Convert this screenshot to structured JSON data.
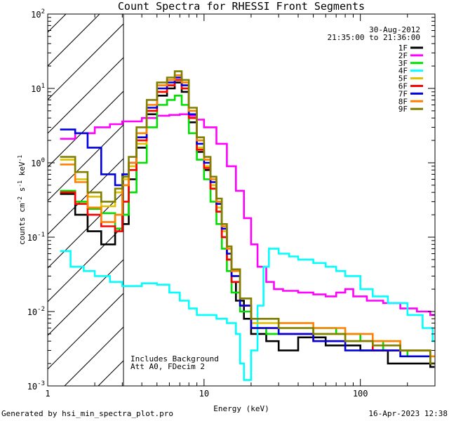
{
  "chart_data": {
    "type": "line",
    "title": "Count Spectra for RHESSI Front Segments",
    "xlabel": "Energy (keV)",
    "ylabel": "counts cm-2 s-1 keV-1",
    "xscale": "log",
    "yscale": "log",
    "xlim": [
      1,
      300
    ],
    "ylim": [
      0.001,
      100
    ],
    "x_tick_labels": [
      "1",
      "10",
      "100"
    ],
    "y_tick_labels": [
      "10-3",
      "10-2",
      "10-1",
      "100",
      "101",
      "102"
    ],
    "date": "30-Aug-2012",
    "time_range": "21:35:00 to 21:36:00",
    "notes": [
      "Includes Background",
      "Att A0, FDecim 2"
    ],
    "hatched_region": [
      1,
      3
    ],
    "legend_location": "top-right",
    "series": [
      {
        "name": "1F",
        "color": "#000000",
        "points": [
          [
            1.2,
            0.38
          ],
          [
            1.5,
            0.2
          ],
          [
            1.8,
            0.12
          ],
          [
            2.2,
            0.08
          ],
          [
            2.7,
            0.13
          ],
          [
            3.0,
            0.15
          ],
          [
            3.3,
            0.6
          ],
          [
            3.7,
            1.6
          ],
          [
            4.3,
            4.5
          ],
          [
            5.0,
            8
          ],
          [
            5.8,
            10
          ],
          [
            6.5,
            12
          ],
          [
            7.2,
            9
          ],
          [
            8,
            3.5
          ],
          [
            9,
            1.4
          ],
          [
            10,
            0.8
          ],
          [
            11,
            0.45
          ],
          [
            12,
            0.22
          ],
          [
            13,
            0.1
          ],
          [
            14,
            0.05
          ],
          [
            15,
            0.025
          ],
          [
            16,
            0.014
          ],
          [
            18,
            0.008
          ],
          [
            20,
            0.005
          ],
          [
            25,
            0.004
          ],
          [
            30,
            0.003
          ],
          [
            40,
            0.0045
          ],
          [
            60,
            0.0035
          ],
          [
            100,
            0.003
          ],
          [
            150,
            0.002
          ],
          [
            200,
            0.002
          ],
          [
            280,
            0.0018
          ]
        ]
      },
      {
        "name": "2F",
        "color": "#ff00ff",
        "points": [
          [
            1.2,
            2.1
          ],
          [
            1.5,
            2.5
          ],
          [
            2,
            3.0
          ],
          [
            2.5,
            3.3
          ],
          [
            3,
            3.6
          ],
          [
            4,
            4.0
          ],
          [
            5,
            4.3
          ],
          [
            6,
            4.4
          ],
          [
            7,
            4.5
          ],
          [
            8,
            4.3
          ],
          [
            9,
            3.8
          ],
          [
            10,
            3.0
          ],
          [
            12,
            1.8
          ],
          [
            14,
            0.9
          ],
          [
            16,
            0.42
          ],
          [
            18,
            0.18
          ],
          [
            20,
            0.08
          ],
          [
            22,
            0.04
          ],
          [
            25,
            0.025
          ],
          [
            28,
            0.02
          ],
          [
            32,
            0.019
          ],
          [
            40,
            0.018
          ],
          [
            50,
            0.017
          ],
          [
            60,
            0.016
          ],
          [
            70,
            0.018
          ],
          [
            80,
            0.02
          ],
          [
            90,
            0.016
          ],
          [
            110,
            0.014
          ],
          [
            140,
            0.013
          ],
          [
            180,
            0.011
          ],
          [
            230,
            0.01
          ],
          [
            280,
            0.009
          ]
        ]
      },
      {
        "name": "3F",
        "color": "#00e000",
        "points": [
          [
            1.2,
            0.42
          ],
          [
            1.5,
            0.3
          ],
          [
            1.8,
            0.24
          ],
          [
            2.2,
            0.21
          ],
          [
            2.7,
            0.13
          ],
          [
            3.0,
            0.2
          ],
          [
            3.3,
            0.4
          ],
          [
            3.7,
            1.0
          ],
          [
            4.3,
            3.0
          ],
          [
            5,
            6
          ],
          [
            5.8,
            7
          ],
          [
            6.5,
            8
          ],
          [
            7.2,
            6
          ],
          [
            8,
            2.5
          ],
          [
            9,
            1.1
          ],
          [
            10,
            0.6
          ],
          [
            11,
            0.3
          ],
          [
            12,
            0.15
          ],
          [
            13,
            0.07
          ],
          [
            14,
            0.035
          ],
          [
            15,
            0.018
          ],
          [
            17,
            0.01
          ],
          [
            20,
            0.006
          ],
          [
            25,
            0.005
          ],
          [
            35,
            0.005
          ],
          [
            50,
            0.006
          ],
          [
            70,
            0.005
          ],
          [
            100,
            0.004
          ],
          [
            140,
            0.003
          ],
          [
            200,
            0.0025
          ],
          [
            280,
            0.002
          ]
        ]
      },
      {
        "name": "4F",
        "color": "#00ffff",
        "points": [
          [
            1.2,
            0.065
          ],
          [
            1.4,
            0.04
          ],
          [
            1.7,
            0.035
          ],
          [
            2,
            0.03
          ],
          [
            2.5,
            0.025
          ],
          [
            3,
            0.022
          ],
          [
            4,
            0.024
          ],
          [
            5,
            0.023
          ],
          [
            6,
            0.018
          ],
          [
            7,
            0.014
          ],
          [
            8,
            0.011
          ],
          [
            9,
            0.009
          ],
          [
            10,
            0.009
          ],
          [
            12,
            0.008
          ],
          [
            14,
            0.007
          ],
          [
            16,
            0.005
          ],
          [
            17,
            0.002
          ],
          [
            18,
            0.0012
          ],
          [
            20,
            0.003
          ],
          [
            22,
            0.012
          ],
          [
            24,
            0.04
          ],
          [
            26,
            0.07
          ],
          [
            30,
            0.06
          ],
          [
            35,
            0.055
          ],
          [
            40,
            0.05
          ],
          [
            50,
            0.045
          ],
          [
            60,
            0.04
          ],
          [
            70,
            0.035
          ],
          [
            80,
            0.03
          ],
          [
            100,
            0.02
          ],
          [
            120,
            0.016
          ],
          [
            150,
            0.013
          ],
          [
            200,
            0.009
          ],
          [
            250,
            0.006
          ],
          [
            290,
            0.004
          ]
        ]
      },
      {
        "name": "5F",
        "color": "#e0c000",
        "points": [
          [
            1.2,
            1.1
          ],
          [
            1.5,
            0.6
          ],
          [
            1.8,
            0.35
          ],
          [
            2.2,
            0.26
          ],
          [
            2.7,
            0.4
          ],
          [
            3.0,
            0.6
          ],
          [
            3.3,
            0.9
          ],
          [
            3.7,
            1.8
          ],
          [
            4.3,
            5
          ],
          [
            5,
            9
          ],
          [
            5.8,
            11
          ],
          [
            6.5,
            13
          ],
          [
            7.2,
            10
          ],
          [
            8,
            4
          ],
          [
            9,
            1.6
          ],
          [
            10,
            0.9
          ],
          [
            11,
            0.5
          ],
          [
            12,
            0.25
          ],
          [
            13,
            0.12
          ],
          [
            14,
            0.06
          ],
          [
            15,
            0.03
          ],
          [
            17,
            0.012
          ],
          [
            20,
            0.007
          ],
          [
            30,
            0.006
          ],
          [
            50,
            0.005
          ],
          [
            80,
            0.004
          ],
          [
            120,
            0.004
          ],
          [
            180,
            0.003
          ],
          [
            280,
            0.0025
          ]
        ]
      },
      {
        "name": "6F",
        "color": "#ff0000",
        "points": [
          [
            1.2,
            0.4
          ],
          [
            1.5,
            0.28
          ],
          [
            1.8,
            0.2
          ],
          [
            2.2,
            0.14
          ],
          [
            2.7,
            0.12
          ],
          [
            3.0,
            0.3
          ],
          [
            3.3,
            0.8
          ],
          [
            3.7,
            2.0
          ],
          [
            4.3,
            5
          ],
          [
            5,
            9
          ],
          [
            5.8,
            11
          ],
          [
            6.5,
            13
          ],
          [
            7.2,
            10
          ],
          [
            8,
            4
          ],
          [
            9,
            1.5
          ],
          [
            10,
            0.85
          ],
          [
            11,
            0.45
          ],
          [
            12,
            0.22
          ],
          [
            13,
            0.1
          ],
          [
            14,
            0.05
          ],
          [
            15,
            0.025
          ],
          [
            17,
            0.012
          ],
          [
            20,
            0.006
          ],
          [
            30,
            0.005
          ],
          [
            50,
            0.004
          ],
          [
            80,
            0.004
          ],
          [
            120,
            0.003
          ],
          [
            180,
            0.003
          ],
          [
            280,
            0.002
          ]
        ]
      },
      {
        "name": "7F",
        "color": "#0000e0",
        "points": [
          [
            1.2,
            2.8
          ],
          [
            1.5,
            2.5
          ],
          [
            1.8,
            1.6
          ],
          [
            2.2,
            0.7
          ],
          [
            2.7,
            0.5
          ],
          [
            3.0,
            0.7
          ],
          [
            3.3,
            1.0
          ],
          [
            3.7,
            2.2
          ],
          [
            4.3,
            5.5
          ],
          [
            5,
            10
          ],
          [
            5.8,
            12
          ],
          [
            6.5,
            14
          ],
          [
            7.2,
            11
          ],
          [
            8,
            4.5
          ],
          [
            9,
            1.8
          ],
          [
            10,
            1.0
          ],
          [
            11,
            0.55
          ],
          [
            12,
            0.28
          ],
          [
            13,
            0.13
          ],
          [
            14,
            0.06
          ],
          [
            15,
            0.03
          ],
          [
            17,
            0.012
          ],
          [
            20,
            0.006
          ],
          [
            30,
            0.005
          ],
          [
            50,
            0.004
          ],
          [
            80,
            0.003
          ],
          [
            120,
            0.003
          ],
          [
            180,
            0.0025
          ],
          [
            280,
            0.002
          ]
        ]
      },
      {
        "name": "8F",
        "color": "#ff8000",
        "points": [
          [
            1.2,
            0.95
          ],
          [
            1.5,
            0.55
          ],
          [
            1.8,
            0.25
          ],
          [
            2.2,
            0.16
          ],
          [
            2.7,
            0.2
          ],
          [
            3.0,
            0.5
          ],
          [
            3.3,
            1.0
          ],
          [
            3.7,
            2.5
          ],
          [
            4.3,
            6
          ],
          [
            5,
            11
          ],
          [
            5.8,
            13
          ],
          [
            6.5,
            15
          ],
          [
            7.2,
            12
          ],
          [
            8,
            5
          ],
          [
            9,
            2.0
          ],
          [
            10,
            1.1
          ],
          [
            11,
            0.6
          ],
          [
            12,
            0.3
          ],
          [
            13,
            0.14
          ],
          [
            14,
            0.07
          ],
          [
            15,
            0.035
          ],
          [
            17,
            0.015
          ],
          [
            20,
            0.008
          ],
          [
            30,
            0.007
          ],
          [
            50,
            0.006
          ],
          [
            80,
            0.005
          ],
          [
            120,
            0.004
          ],
          [
            180,
            0.003
          ],
          [
            280,
            0.0025
          ]
        ]
      },
      {
        "name": "9F",
        "color": "#808000",
        "points": [
          [
            1.2,
            1.2
          ],
          [
            1.5,
            0.75
          ],
          [
            1.8,
            0.4
          ],
          [
            2.2,
            0.3
          ],
          [
            2.7,
            0.45
          ],
          [
            3.0,
            0.65
          ],
          [
            3.3,
            1.2
          ],
          [
            3.7,
            3.0
          ],
          [
            4.3,
            7
          ],
          [
            5,
            12
          ],
          [
            5.8,
            14
          ],
          [
            6.5,
            17
          ],
          [
            7.2,
            13
          ],
          [
            8,
            5.5
          ],
          [
            9,
            2.2
          ],
          [
            10,
            1.2
          ],
          [
            11,
            0.65
          ],
          [
            12,
            0.33
          ],
          [
            13,
            0.15
          ],
          [
            14,
            0.075
          ],
          [
            15,
            0.037
          ],
          [
            17,
            0.015
          ],
          [
            20,
            0.008
          ],
          [
            30,
            0.006
          ],
          [
            50,
            0.005
          ],
          [
            80,
            0.004
          ],
          [
            120,
            0.0035
          ],
          [
            180,
            0.003
          ],
          [
            280,
            0.002
          ]
        ]
      }
    ]
  },
  "footer": {
    "left": "Generated by hsi_min_spectra_plot.pro",
    "right": "16-Apr-2023 12:38"
  }
}
